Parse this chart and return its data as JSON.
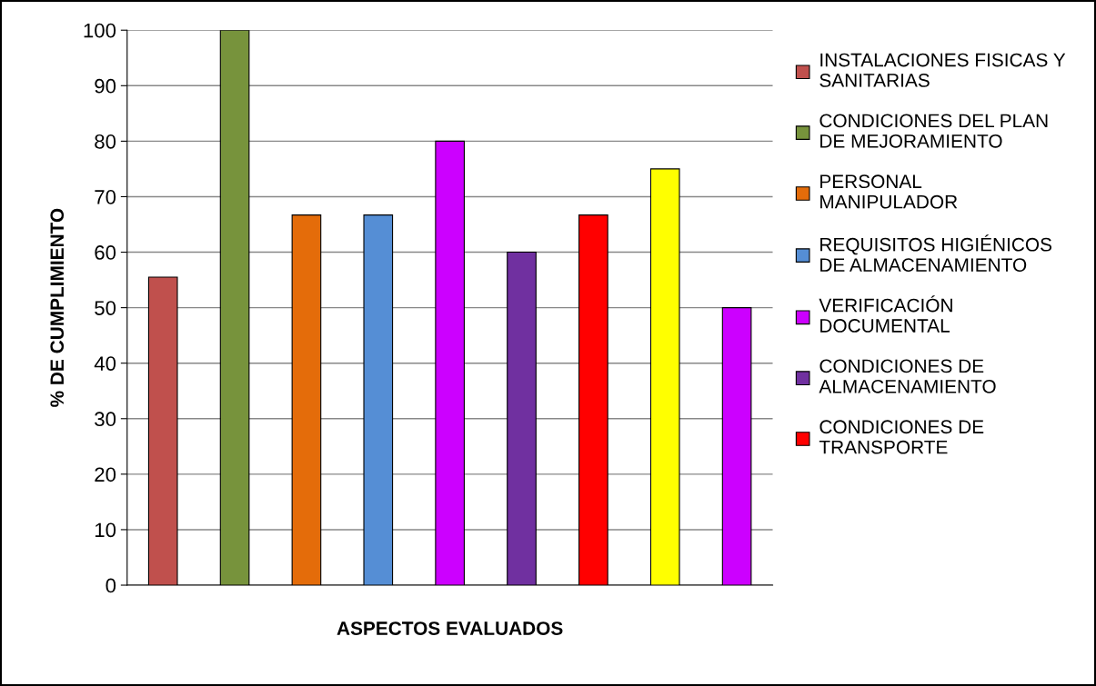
{
  "chart_data": {
    "type": "bar",
    "xlabel": "ASPECTOS EVALUADOS",
    "ylabel": "% DE CUMPLIMIENTO",
    "categories": [
      null,
      null,
      null,
      null,
      null,
      null,
      null,
      null,
      null
    ],
    "series": [
      {
        "name": "INSTALACIONES FISICAS Y\nSANITARIAS",
        "color": "#c0504d",
        "values": [
          55.5,
          null,
          null,
          null,
          null,
          null,
          null,
          null,
          null
        ]
      },
      {
        "name": "CONDICIONES DEL PLAN\nDE MEJORAMIENTO",
        "color": "#77933c",
        "values": [
          null,
          100,
          null,
          null,
          null,
          null,
          null,
          null,
          null
        ]
      },
      {
        "name": "PERSONAL\nMANIPULADOR",
        "color": "#e46c0a",
        "values": [
          null,
          null,
          66.7,
          null,
          null,
          null,
          null,
          null,
          null
        ]
      },
      {
        "name": "REQUISITOS HIGIÉNICOS\nDE ALMACENAMIENTO",
        "color": "#558ed5",
        "values": [
          null,
          null,
          null,
          66.7,
          null,
          null,
          null,
          null,
          null
        ]
      },
      {
        "name": "VERIFICACIÓN\nDOCUMENTAL",
        "color": "#cc00ff",
        "values": [
          null,
          null,
          null,
          null,
          80,
          null,
          null,
          null,
          null
        ]
      },
      {
        "name": "CONDICIONES DE\nALMACENAMIENTO",
        "color": "#7030a0",
        "values": [
          null,
          null,
          null,
          null,
          null,
          60,
          null,
          null,
          null
        ]
      },
      {
        "name": "CONDICIONES DE\nTRANSPORTE",
        "color": "#ff0000",
        "values": [
          null,
          null,
          null,
          null,
          null,
          null,
          66.7,
          null,
          null
        ]
      },
      {
        "color": "#ffff00",
        "values": [
          null,
          null,
          null,
          null,
          null,
          null,
          null,
          75,
          null
        ]
      },
      {
        "color": "#cc00ff",
        "values": [
          null,
          null,
          null,
          null,
          null,
          null,
          null,
          null,
          50
        ]
      }
    ],
    "ylim": [
      0,
      100
    ],
    "yticks": [
      0,
      10,
      20,
      30,
      40,
      50,
      60,
      70,
      80,
      90,
      100
    ],
    "grid": "y",
    "legend": "right"
  }
}
